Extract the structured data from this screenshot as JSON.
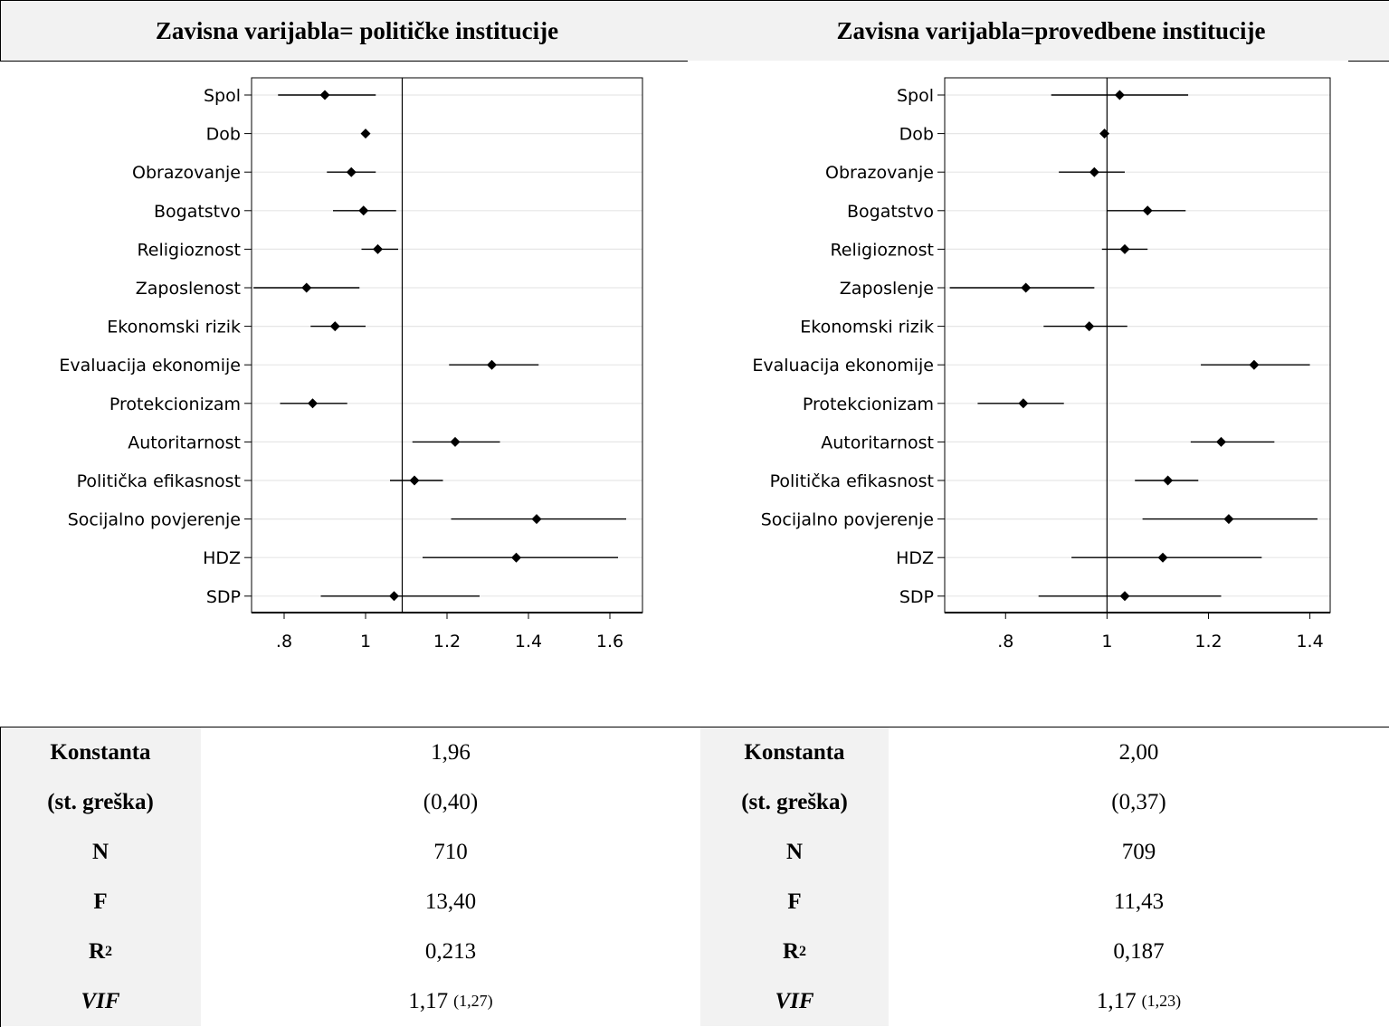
{
  "headers": {
    "left": "Zavisna varijabla= političke institucije",
    "right": "Zavisna varijabla=provedbene institucije"
  },
  "chart_data": [
    {
      "type": "scatter",
      "title": "Zavisna varijabla= političke institucije",
      "xlabel": "",
      "ylabel": "",
      "xlim": [
        0.72,
        1.68
      ],
      "xticks": [
        ".8",
        "1",
        "1.2",
        "1.4",
        "1.6"
      ],
      "xtick_values": [
        0.8,
        1.0,
        1.2,
        1.4,
        1.6
      ],
      "reference_line": 1.09,
      "categories": [
        "Spol",
        "Dob",
        "Obrazovanje",
        "Bogatstvo",
        "Religioznost",
        "Zaposlenost",
        "Ekonomski rizik",
        "Evaluacija ekonomije",
        "Protekcionizam",
        "Autoritarnost",
        "Politička efikasnost",
        "Socijalno povjerenje",
        "HDZ",
        "SDP"
      ],
      "estimates": [
        0.9,
        1.0,
        0.965,
        0.995,
        1.03,
        0.855,
        0.925,
        1.31,
        0.87,
        1.22,
        1.12,
        1.42,
        1.37,
        1.07
      ],
      "ci_low": [
        0.785,
        1.0,
        0.905,
        0.92,
        0.99,
        0.725,
        0.865,
        1.205,
        0.79,
        1.115,
        1.06,
        1.21,
        1.14,
        0.89
      ],
      "ci_high": [
        1.025,
        1.0,
        1.025,
        1.075,
        1.08,
        0.985,
        1.0,
        1.425,
        0.955,
        1.33,
        1.19,
        1.64,
        1.62,
        1.28
      ],
      "grid": true
    },
    {
      "type": "scatter",
      "title": "Zavisna varijabla=provedbene institucije",
      "xlabel": "",
      "ylabel": "",
      "xlim": [
        0.68,
        1.44
      ],
      "xticks": [
        ".8",
        "1",
        "1.2",
        "1.4"
      ],
      "xtick_values": [
        0.8,
        1.0,
        1.2,
        1.4
      ],
      "reference_line": 1.0,
      "categories": [
        "Spol",
        "Dob",
        "Obrazovanje",
        "Bogatstvo",
        "Religioznost",
        "Zaposlenje",
        "Ekonomski rizik",
        "Evaluacija ekonomije",
        "Protekcionizam",
        "Autoritarnost",
        "Politička efikasnost",
        "Socijalno povjerenje",
        "HDZ",
        "SDP"
      ],
      "estimates": [
        1.025,
        0.995,
        0.975,
        1.08,
        1.035,
        0.84,
        0.965,
        1.29,
        0.835,
        1.225,
        1.12,
        1.24,
        1.11,
        1.035
      ],
      "ci_low": [
        0.89,
        0.995,
        0.905,
        1.0,
        0.99,
        0.69,
        0.875,
        1.185,
        0.745,
        1.165,
        1.055,
        1.07,
        0.93,
        0.865
      ],
      "ci_high": [
        1.16,
        0.995,
        1.035,
        1.155,
        1.08,
        0.975,
        1.04,
        1.4,
        0.915,
        1.33,
        1.18,
        1.415,
        1.305,
        1.225
      ],
      "grid": true
    }
  ],
  "stats": {
    "left": {
      "konstanta_label": "Konstanta",
      "konstanta": "1,96",
      "se_label": "(st. greška)",
      "se": "(0,40)",
      "n_label": "N",
      "n": "710",
      "f_label": "F",
      "f": "13,40",
      "r2_label": "R",
      "r2_sup": "2",
      "r2": "0,213",
      "vif_label": "VIF",
      "vif": "1,17",
      "vif_small": "(1,27)"
    },
    "right": {
      "konstanta_label": "Konstanta",
      "konstanta": "2,00",
      "se_label": "(st. greška)",
      "se": "(0,37)",
      "n_label": "N",
      "n": "709",
      "f_label": "F",
      "f": "11,43",
      "r2_label": "R",
      "r2_sup": "2",
      "r2": "0,187",
      "vif_label": "VIF",
      "vif": "1,17",
      "vif_small": "(1,23)"
    }
  }
}
